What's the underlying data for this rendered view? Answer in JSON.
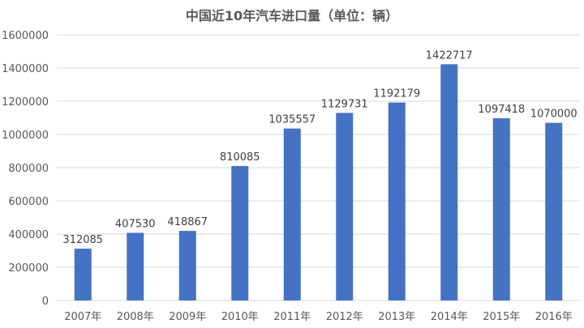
{
  "chart_data": {
    "type": "bar",
    "title": "中国近10年汽车进口量（单位：辆）",
    "categories": [
      "2007年",
      "2008年",
      "2009年",
      "2010年",
      "2011年",
      "2012年",
      "2013年",
      "2014年",
      "2015年",
      "2016年"
    ],
    "series": [
      {
        "values": [
          312085,
          407530,
          418867,
          810085,
          1035557,
          1129731,
          1192179,
          1422717,
          1097418,
          1070000
        ]
      }
    ],
    "data_labels": [
      "312085",
      "407530",
      "418867",
      "810085",
      "1035557",
      "1129731",
      "1192179",
      "1422717",
      "1097418",
      "1070000"
    ],
    "y_ticks": [
      0,
      200000,
      400000,
      600000,
      800000,
      1000000,
      1200000,
      1400000,
      1600000
    ],
    "y_tick_labels": [
      "0",
      "200000",
      "400000",
      "600000",
      "800000",
      "1000000",
      "1200000",
      "1400000",
      "1600000"
    ],
    "ylim": [
      0,
      1600000
    ],
    "xlabel": "",
    "ylabel": "",
    "grid": true,
    "legend": "none",
    "bar_color": "#4472C4",
    "grid_color": "#D9D9D9"
  }
}
